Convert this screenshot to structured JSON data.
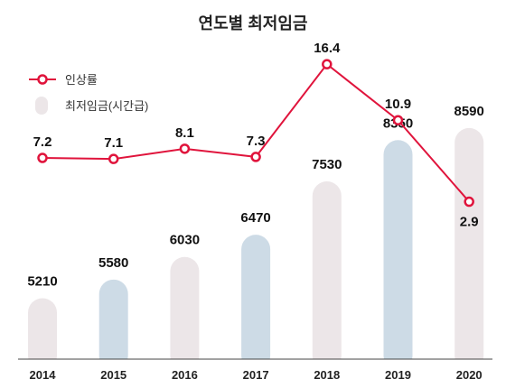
{
  "chart_data": {
    "type": "bar",
    "title": "연도별 최저임금",
    "categories": [
      "2014",
      "2015",
      "2016",
      "2017",
      "2018",
      "2019",
      "2020"
    ],
    "series": [
      {
        "name": "최저임금(시간급)",
        "type": "bar",
        "values": [
          5210,
          5580,
          6030,
          6470,
          7530,
          8350,
          8590
        ],
        "colors": [
          "#ece6e8",
          "#cddbe6",
          "#ece6e8",
          "#cddbe6",
          "#ece6e8",
          "#cddbe6",
          "#ece6e8"
        ],
        "value_labels": [
          "5210",
          "5580",
          "6030",
          "6470",
          "7530",
          "8350",
          "8590"
        ]
      },
      {
        "name": "인상률",
        "type": "line",
        "values": [
          7.2,
          7.1,
          8.1,
          7.3,
          16.4,
          10.9,
          2.9
        ],
        "color": "#e0143c",
        "value_labels": [
          "7.2",
          "7.1",
          "8.1",
          "7.3",
          "16.4",
          "10.9",
          "2.9"
        ]
      }
    ],
    "legend_position": "top-left",
    "grid": false
  }
}
